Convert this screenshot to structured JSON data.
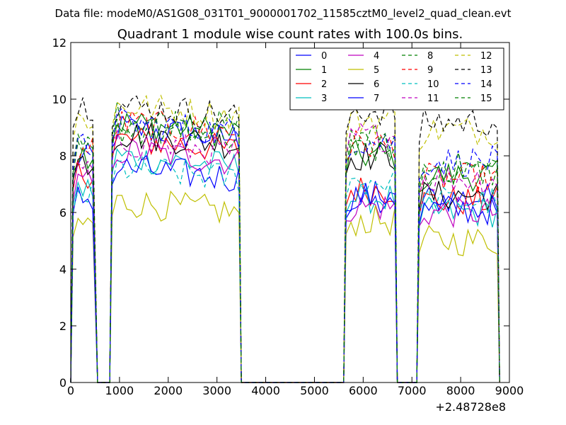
{
  "header": {
    "data_file": "Data file: modeM0/AS1G08_031T01_9000001702_11585cztM0_level2_quad_clean.evt"
  },
  "chart_data": {
    "type": "line",
    "title": "Quadrant 1 module wise count rates with 100.0s bins.",
    "xlabel": "",
    "ylabel": "",
    "x_offset_label": "+2.48728e8",
    "xlim": [
      0,
      9000
    ],
    "ylim": [
      0,
      12
    ],
    "xticks": [
      0,
      1000,
      2000,
      3000,
      4000,
      5000,
      6000,
      7000,
      8000,
      9000
    ],
    "yticks": [
      0,
      2,
      4,
      6,
      8,
      10,
      12
    ],
    "xtick_labels": [
      "0",
      "1000",
      "2000",
      "3000",
      "4000",
      "5000",
      "6000",
      "7000",
      "8000",
      "9000"
    ],
    "ytick_labels": [
      "0",
      "2",
      "4",
      "6",
      "8",
      "10",
      "12"
    ],
    "grid": false,
    "legend_position": "top-right",
    "legend_columns": 4,
    "segments": [
      {
        "start": 50,
        "end": 500
      },
      {
        "start": 850,
        "end": 3450
      },
      {
        "start": 5650,
        "end": 6650
      },
      {
        "start": 7150,
        "end": 8750
      }
    ],
    "series": [
      {
        "name": "0",
        "color": "#0000ff",
        "dash": "solid",
        "levels": [
          7.9,
          9.0,
          6.3,
          6.5
        ]
      },
      {
        "name": "1",
        "color": "#008000",
        "dash": "solid",
        "levels": [
          8.1,
          9.2,
          8.0,
          7.3
        ]
      },
      {
        "name": "2",
        "color": "#ff0000",
        "dash": "solid",
        "levels": [
          7.4,
          8.6,
          6.8,
          6.4
        ]
      },
      {
        "name": "3",
        "color": "#00bfbf",
        "dash": "solid",
        "levels": [
          6.8,
          8.0,
          6.5,
          6.0
        ]
      },
      {
        "name": "4",
        "color": "#bf00bf",
        "dash": "solid",
        "levels": [
          7.0,
          8.2,
          6.2,
          6.0
        ]
      },
      {
        "name": "5",
        "color": "#bfbf00",
        "dash": "solid",
        "levels": [
          5.6,
          6.4,
          5.7,
          5.0
        ]
      },
      {
        "name": "6",
        "color": "#000000",
        "dash": "solid",
        "levels": [
          7.8,
          8.8,
          8.0,
          6.6
        ]
      },
      {
        "name": "7",
        "color": "#0000ff",
        "dash": "solid",
        "levels": [
          6.5,
          7.6,
          6.6,
          6.1
        ]
      },
      {
        "name": "8",
        "color": "#008000",
        "dash": "dashed",
        "levels": [
          8.4,
          9.4,
          8.6,
          7.4
        ]
      },
      {
        "name": "9",
        "color": "#ff0000",
        "dash": "dashed",
        "levels": [
          8.2,
          9.2,
          8.4,
          7.2
        ]
      },
      {
        "name": "10",
        "color": "#00bfbf",
        "dash": "dashed",
        "levels": [
          6.6,
          7.6,
          7.1,
          6.4
        ]
      },
      {
        "name": "11",
        "color": "#bf00bf",
        "dash": "dashed",
        "levels": [
          7.5,
          8.5,
          8.7,
          7.2
        ]
      },
      {
        "name": "12",
        "color": "#bfbf00",
        "dash": "dashed",
        "levels": [
          9.3,
          9.8,
          9.3,
          8.9
        ]
      },
      {
        "name": "13",
        "color": "#000000",
        "dash": "dashed",
        "levels": [
          9.8,
          9.8,
          9.6,
          9.2
        ]
      },
      {
        "name": "14",
        "color": "#0000ff",
        "dash": "dashed",
        "levels": [
          8.3,
          9.2,
          8.5,
          7.8
        ]
      },
      {
        "name": "15",
        "color": "#008000",
        "dash": "dashed",
        "levels": [
          8.0,
          9.0,
          8.3,
          7.6
        ]
      }
    ]
  }
}
